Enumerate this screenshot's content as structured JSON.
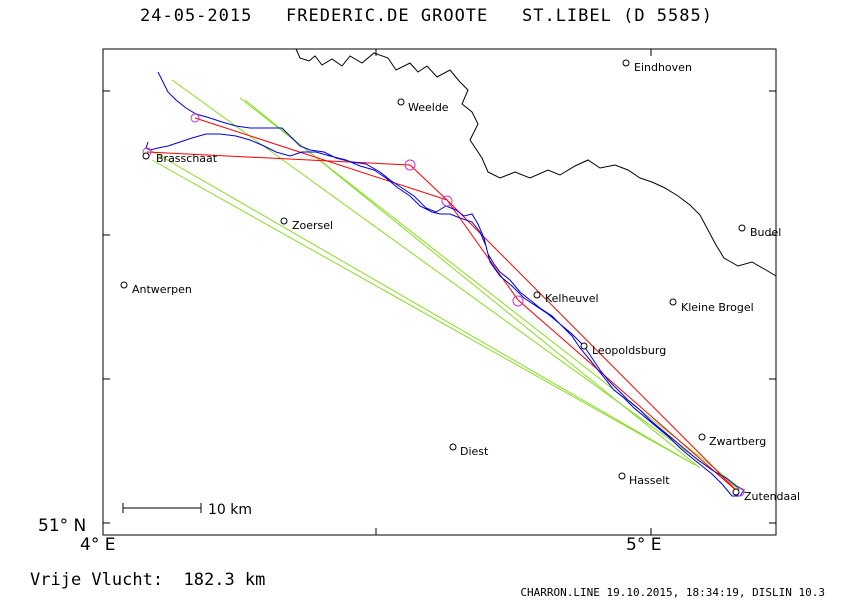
{
  "title": "24-05-2015   FREDERIC.DE GROOTE   ST.LIBEL (D 5585)",
  "axes": {
    "x_ticks": [
      "4° E",
      "5° E"
    ],
    "y_ticks": [
      "51° N"
    ]
  },
  "scale_bar": {
    "label": "10 km"
  },
  "places": [
    {
      "name": "Eindhoven"
    },
    {
      "name": "Weelde"
    },
    {
      "name": "Brasschaat"
    },
    {
      "name": "Zoersel"
    },
    {
      "name": "Budel"
    },
    {
      "name": "Antwerpen"
    },
    {
      "name": "Kelheuvel"
    },
    {
      "name": "Kleine Brogel"
    },
    {
      "name": "Leopoldsburg"
    },
    {
      "name": "Zwartberg"
    },
    {
      "name": "Diest"
    },
    {
      "name": "Hasselt"
    },
    {
      "name": "Zutendaal"
    }
  ],
  "legend_colors": {
    "track": "#0000dd",
    "task": "#ff0000",
    "turnpoints": "#cc33cc",
    "olc_legs": "#88dd22",
    "border": "#000000"
  },
  "distance_text": "Vrije Vlucht:  182.3 km",
  "footer_text": "CHARRON.LINE 19.10.2015, 18:34:19, DISLIN 10.3"
}
